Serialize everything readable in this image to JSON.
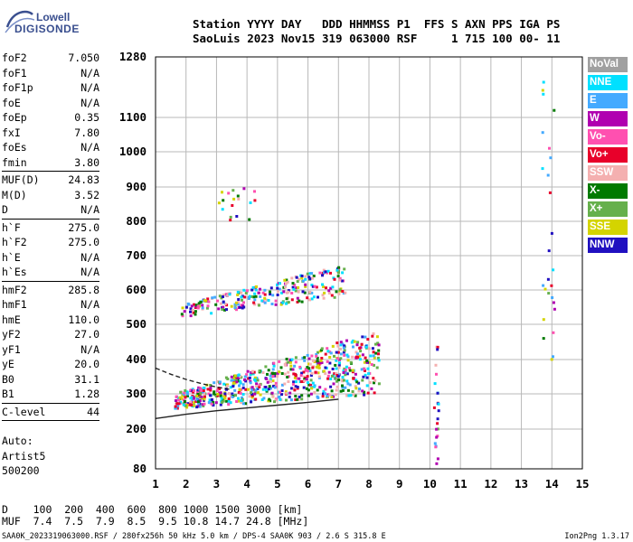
{
  "logo": {
    "line1": "Lowell",
    "line2": "DIGISONDE"
  },
  "header": {
    "line1": "Station YYYY DAY   DDD HHMMSS P1  FFS S AXN PPS IGA PS",
    "line2": "SaoLuis 2023 Nov15 319 063000 RSF     1 715 100 00- 11"
  },
  "params": {
    "group1": [
      {
        "label": "foF2",
        "value": "7.050"
      },
      {
        "label": "foF1",
        "value": "N/A"
      },
      {
        "label": "foF1p",
        "value": "N/A"
      },
      {
        "label": "foE",
        "value": "N/A"
      },
      {
        "label": "foEp",
        "value": "0.35"
      },
      {
        "label": "fxI",
        "value": "7.80"
      },
      {
        "label": "foEs",
        "value": "N/A"
      },
      {
        "label": "fmin",
        "value": "3.80"
      }
    ],
    "group2": [
      {
        "label": "MUF(D)",
        "value": "24.83"
      },
      {
        "label": "M(D)",
        "value": "3.52"
      },
      {
        "label": "D",
        "value": "N/A"
      }
    ],
    "group3": [
      {
        "label": "h`F",
        "value": "275.0"
      },
      {
        "label": "h`F2",
        "value": "275.0"
      },
      {
        "label": "h`E",
        "value": "N/A"
      },
      {
        "label": "h`Es",
        "value": "N/A"
      }
    ],
    "group4": [
      {
        "label": "hmF2",
        "value": "285.8"
      },
      {
        "label": "hmF1",
        "value": "N/A"
      },
      {
        "label": "hmE",
        "value": "110.0"
      },
      {
        "label": "yF2",
        "value": "27.0"
      },
      {
        "label": "yF1",
        "value": "N/A"
      },
      {
        "label": "yE",
        "value": "20.0"
      },
      {
        "label": "B0",
        "value": "31.1"
      },
      {
        "label": "B1",
        "value": "1.28"
      }
    ],
    "group5": [
      {
        "label": "C-level",
        "value": "44"
      }
    ]
  },
  "auto": {
    "line1": "Auto:",
    "line2": "Artist5",
    "line3": "500200"
  },
  "bottom": {
    "d_line": "D    100  200  400  600  800 1000 1500 3000 [km]",
    "muf_line": "MUF  7.4  7.5  7.9  8.5  9.5 10.8 14.7 24.8 [MHz]"
  },
  "footer": {
    "left": "SAA0K_2023319063000.RSF / 280fx256h 50 kHz 5.0 km / DPS-4 SAA0K 903 / 2.6 S 315.8 E",
    "right": "Ion2Png 1.3.17"
  },
  "legend": [
    {
      "label": "NoVal",
      "color": "#a0a0a0"
    },
    {
      "label": "NNE",
      "color": "#00e0ff"
    },
    {
      "label": "E",
      "color": "#44aaff"
    },
    {
      "label": "W",
      "color": "#b000b0"
    },
    {
      "label": "Vo-",
      "color": "#ff50b0"
    },
    {
      "label": "Vo+",
      "color": "#e8002a"
    },
    {
      "label": "SSW",
      "color": "#f4b0b0"
    },
    {
      "label": "X-",
      "color": "#007a00"
    },
    {
      "label": "X+",
      "color": "#66b04c"
    },
    {
      "label": "SSE",
      "color": "#d4d400"
    },
    {
      "label": "NNW",
      "color": "#2010c0"
    }
  ],
  "chart_data": {
    "type": "scatter",
    "title": "",
    "xlabel": "",
    "ylabel": "",
    "xlim": [
      1,
      15
    ],
    "ylim": [
      80,
      1280
    ],
    "xticks": [
      1,
      2,
      3,
      4,
      5,
      6,
      7,
      8,
      9,
      10,
      11,
      12,
      13,
      14,
      15
    ],
    "yticks": [
      80,
      200,
      300,
      400,
      500,
      600,
      700,
      800,
      900,
      1000,
      1100,
      1280
    ],
    "grid": true,
    "traces": [
      {
        "name": "",
        "x": [
          1.0,
          2.0,
          3.0,
          4.0,
          5.0,
          6.0,
          7.0
        ],
        "y": [
          230,
          242,
          252,
          260,
          268,
          276,
          285
        ]
      },
      {
        "name": "",
        "x": [
          1.0,
          1.5,
          2.0,
          2.5,
          3.0,
          3.5
        ],
        "y": [
          375,
          357,
          342,
          330,
          320,
          312
        ]
      }
    ],
    "clusters": [
      {
        "x": [
          1.6,
          8.3
        ],
        "y": [
          255,
          490
        ],
        "n": 700
      },
      {
        "x": [
          1.8,
          7.2
        ],
        "y": [
          520,
          700
        ],
        "n": 260
      },
      {
        "x": [
          2.9,
          4.4
        ],
        "y": [
          800,
          900
        ],
        "n": 18
      },
      {
        "x": [
          10.1,
          10.25
        ],
        "y": [
          80,
          460
        ],
        "n": 24
      },
      {
        "x": [
          13.65,
          14.05
        ],
        "y": [
          370,
          1260
        ],
        "n": 26
      }
    ]
  }
}
